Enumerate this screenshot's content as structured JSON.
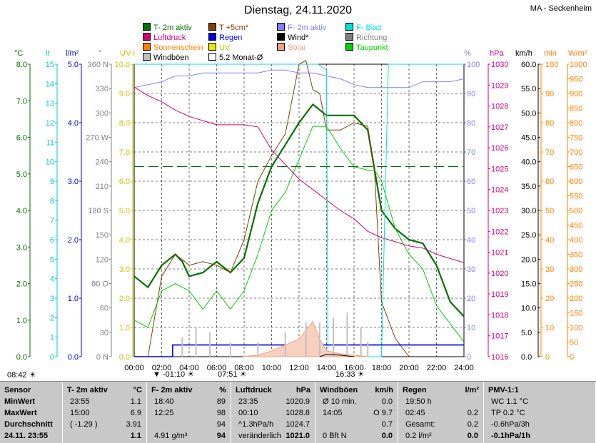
{
  "title": "Dienstag, 24.11.2020",
  "station": "MA - Seckenheim",
  "legend": [
    {
      "label": "T- 2m aktiv",
      "color": "#007000"
    },
    {
      "label": "Luftdruck",
      "color": "#d0007a"
    },
    {
      "label": "Sonnenschein",
      "color": "#ff8000"
    },
    {
      "label": "Windböen",
      "color": "#c0c0c0"
    },
    {
      "label": "T +5cm*",
      "color": "#804000"
    },
    {
      "label": "Regen",
      "color": "#0000e0"
    },
    {
      "label": "UV",
      "color": "#e8e800"
    },
    {
      "label": "5.2 Monat-Ø",
      "color": "#ffffff"
    },
    {
      "label": "F- 2m aktiv",
      "color": "#8080ff"
    },
    {
      "label": "Wind*",
      "color": "#000000"
    },
    {
      "label": "Solar",
      "color": "#f0a080"
    },
    {
      "label": "F- Blatt",
      "color": "#00e0e0"
    },
    {
      "label": "Richtung",
      "color": "#808080"
    },
    {
      "label": "Taupunkt",
      "color": "#00d000"
    }
  ],
  "axis_units": {
    "degC": "°C",
    "lr": "lr",
    "lm2": "l/m²",
    "deg": "°",
    "uvi": "UV-I",
    "pct": "%",
    "hpa": "hPa",
    "kmh": "km/h",
    "min": "min",
    "wm2": "W/m²"
  },
  "axes": {
    "degC": [
      "8.0",
      "7.0",
      "6.0",
      "5.0",
      "4.0",
      "3.0",
      "2.0",
      "1.0",
      "0.0"
    ],
    "lr": [
      "15",
      "14",
      "13",
      "12",
      "11",
      "10",
      "9",
      "8",
      "7",
      "6",
      "5",
      "4",
      "3",
      "2",
      "1",
      "0"
    ],
    "lm2": [
      "5.0",
      "4.0",
      "3.0",
      "2.0",
      "1.0",
      "0.0"
    ],
    "deg": [
      "360 N",
      "330",
      "300",
      "270 W",
      "240",
      "210",
      "180 S",
      "150",
      "120",
      "90 O",
      "60",
      "30",
      "0 N"
    ],
    "uvi": [
      "10.0",
      "9.0",
      "8.0",
      "7.0",
      "6.0",
      "5.0",
      "4.0",
      "3.0",
      "2.0",
      "1.0",
      "0.0"
    ],
    "pct": [
      "100",
      "90",
      "80",
      "70",
      "60",
      "50",
      "40",
      "30",
      "20",
      "10",
      "0"
    ],
    "hpa": [
      "1030",
      "1029",
      "1028",
      "1027",
      "1026",
      "1025",
      "1024",
      "1023",
      "1022",
      "1021",
      "1020",
      "1019",
      "1018",
      "1017",
      "1016"
    ],
    "kmh": [
      "60.0",
      "55.0",
      "50.0",
      "45.0",
      "40.0",
      "35.0",
      "30.0",
      "25.0",
      "20.0",
      "15.0",
      "10.0",
      "5.0",
      "0.0"
    ],
    "min": [
      "100",
      "90",
      "80",
      "70",
      "60",
      "50",
      "40",
      "30",
      "20",
      "10",
      "0"
    ],
    "wm2": [
      "1000",
      "950",
      "900",
      "850",
      "800",
      "750",
      "700",
      "650",
      "600",
      "550",
      "500",
      "450",
      "400",
      "350",
      "300",
      "250",
      "200",
      "150",
      "100",
      "50",
      "0"
    ]
  },
  "chart_data": {
    "type": "line",
    "title": "Dienstag, 24.11.2020",
    "x_ticks": [
      "00:00",
      "02:00",
      "04:00",
      "06:00",
      "08:00",
      "10:00",
      "12:00",
      "14:00",
      "16:00",
      "18:00",
      "20:00",
      "22:00",
      "24:00"
    ],
    "x_range_hours": [
      0,
      24
    ],
    "y_range_degC": [
      0,
      8
    ],
    "grid": true,
    "markers": {
      "sunrise": "07:51",
      "sunset": "16:33",
      "tmin": "-01:10",
      "tmax": "08:42"
    },
    "series": [
      {
        "name": "T- 2m aktiv",
        "unit": "°C",
        "color": "#007000",
        "x": [
          0,
          1,
          2,
          3,
          3.5,
          4,
          5,
          6,
          7,
          8,
          9,
          10,
          11,
          12,
          13,
          14,
          16,
          17,
          18,
          19,
          20,
          21,
          22,
          23,
          24
        ],
        "y": [
          2.2,
          1.9,
          2.5,
          2.8,
          2.6,
          2.2,
          2.3,
          2.6,
          2.3,
          2.7,
          4.2,
          5.2,
          5.8,
          6.4,
          6.9,
          6.6,
          6.6,
          6.2,
          4.0,
          3.5,
          3.2,
          3.1,
          2.5,
          1.5,
          1.1
        ]
      },
      {
        "name": "T +5cm*",
        "unit": "°C",
        "color": "#804000",
        "x": [
          0,
          0.5,
          1,
          2,
          3,
          4,
          5,
          6,
          7,
          8,
          9,
          10,
          11,
          12,
          12.5,
          13,
          13.5,
          14,
          15,
          16,
          17,
          17.5,
          18,
          19,
          20
        ],
        "y": [
          0,
          0,
          0,
          2.2,
          2.8,
          2.5,
          2.6,
          2.5,
          2.3,
          3.2,
          4.8,
          5.5,
          6.1,
          8.0,
          8.1,
          7.3,
          7.2,
          6.2,
          6.2,
          6.4,
          6.3,
          5.0,
          1.5,
          0.5,
          0.0
        ]
      },
      {
        "name": "Taupunkt",
        "unit": "°C",
        "color": "#00d000",
        "x": [
          0,
          1,
          2,
          3,
          4,
          5,
          6,
          7,
          8,
          9,
          10,
          11,
          12,
          13,
          14,
          15,
          16,
          17,
          17.5,
          18,
          19,
          20,
          21,
          22,
          23,
          24
        ],
        "y": [
          1.0,
          0.8,
          1.8,
          2.0,
          1.8,
          1.3,
          1.8,
          1.3,
          1.8,
          2.8,
          4.0,
          4.5,
          5.4,
          6.3,
          6.3,
          5.7,
          5.2,
          5.1,
          5.1,
          4.8,
          3.5,
          2.8,
          2.4,
          1.4,
          0.9,
          0.4
        ]
      },
      {
        "name": "F- 2m aktiv",
        "unit": "%",
        "color": "#8080ff",
        "x": [
          0,
          1,
          2,
          3,
          4,
          5,
          6,
          7,
          8,
          9,
          10,
          11,
          12,
          13,
          14,
          15,
          16,
          17,
          18,
          19,
          20,
          21,
          22,
          23,
          24
        ],
        "y": [
          92,
          93,
          94,
          96,
          96,
          97,
          97,
          97,
          97,
          97,
          98,
          98,
          97,
          97,
          96,
          95,
          93,
          92,
          92,
          92,
          92,
          94,
          94,
          94,
          95
        ]
      },
      {
        "name": "Luftdruck",
        "unit": "hPa",
        "color": "#d0007a",
        "x": [
          0,
          1,
          2,
          3,
          4,
          5,
          6,
          7,
          8,
          9,
          10,
          11,
          12,
          13,
          14,
          15,
          16,
          17,
          18,
          19,
          20,
          21,
          22,
          23,
          24
        ],
        "y": [
          1028.9,
          1028.5,
          1028.2,
          1027.8,
          1027.5,
          1027.3,
          1027.1,
          1027.1,
          1027.1,
          1027.0,
          1025.9,
          1025.2,
          1024.5,
          1024.0,
          1023.5,
          1023.0,
          1022.6,
          1022.0,
          1021.7,
          1021.5,
          1021.3,
          1021.2,
          1020.9,
          1020.7,
          1020.5
        ]
      },
      {
        "name": "F- Blatt",
        "unit": "%",
        "color": "#00e0e0",
        "x": [
          0,
          13,
          13.4,
          14,
          14.1,
          14.5,
          17.9,
          18,
          18.5,
          19,
          24
        ],
        "y": [
          100,
          100,
          100,
          98,
          0,
          0,
          0,
          0,
          100,
          100,
          100
        ]
      },
      {
        "name": "Regen",
        "unit": "l/m²",
        "color": "#0000e0",
        "x": [
          0,
          2.8,
          2.8,
          24
        ],
        "y": [
          0,
          0,
          0.2,
          0.2
        ]
      },
      {
        "name": "5.2 Monat-Ø",
        "unit": "°C",
        "color": "#007000",
        "x": [
          0,
          24
        ],
        "y": [
          5.2,
          5.2
        ]
      },
      {
        "name": "Solar",
        "unit": "W/m²",
        "color": "#f0a080",
        "x": [
          7.9,
          9,
          10,
          11,
          12,
          12.5,
          13,
          13.5,
          14,
          15,
          16,
          17
        ],
        "y": [
          0,
          5,
          20,
          40,
          60,
          90,
          120,
          60,
          20,
          10,
          5,
          0
        ]
      },
      {
        "name": "Windböen",
        "unit": "km/h",
        "color": "#c0c0c0",
        "x": [
          3.5,
          4.5,
          5.5,
          7,
          9,
          11,
          12.5,
          13.5,
          14.5,
          15.5,
          16.5,
          17
        ],
        "y": [
          4,
          6,
          5,
          3,
          3,
          5,
          7,
          7,
          8,
          9,
          6,
          3
        ]
      },
      {
        "name": "Wind*",
        "unit": "km/h",
        "color": "#000000",
        "x": [
          13.5,
          14,
          15,
          16
        ],
        "y": [
          0,
          0.5,
          0.3,
          0
        ]
      }
    ]
  },
  "table": {
    "headers": [
      {
        "name": "Sensor",
        "unit": ""
      },
      {
        "name": "T- 2m aktiv",
        "unit": "°C"
      },
      {
        "name": "F- 2m aktiv",
        "unit": "%"
      },
      {
        "name": "Luftdruck",
        "unit": "hPa"
      },
      {
        "name": "Windböen",
        "unit": "km/h"
      },
      {
        "name": "Regen",
        "unit": "l/m²"
      },
      {
        "name": "PMV-1:1",
        "unit": ""
      }
    ],
    "rows": [
      {
        "label": "MinWert",
        "t_time": "23:55",
        "t_val": "1.1",
        "f_time": "18:40",
        "f_val": "89",
        "p_time": "23:35",
        "p_val": "1020.9",
        "w_time": "Ø 10 min.",
        "w_val": "0.0",
        "r_time": "19:50 h",
        "r_val": "",
        "pmv": "WC 1.1 °C"
      },
      {
        "label": "MaxWert",
        "t_time": "15:00",
        "t_val": "6.9",
        "f_time": "12:25",
        "f_val": "98",
        "p_time": "00:10",
        "p_val": "1028.8",
        "w_time": "14:05",
        "w_val": "O 9.7",
        "r_time": "02:45",
        "r_val": "0.2",
        "pmv": "TP 0.2 °C"
      },
      {
        "label": "Durchschnitt",
        "t_time": "( -1.29 )",
        "t_val": "3.91",
        "f_time": "",
        "f_val": "94",
        "p_time": "^1.3hPa/h",
        "p_val": "1024.7",
        "w_time": "",
        "w_val": "0.7",
        "r_time": "Gesamt:",
        "r_val": "0.2",
        "pmv": "-0.6hPa/3h"
      },
      {
        "label": "24.11. 23:55",
        "t_time": "",
        "t_val": "1.1",
        "f_time": "4.91 g/m³",
        "f_val": "94",
        "p_time": "veränderlich",
        "p_val": "1021.0",
        "w_time": "0 Bft N",
        "w_val": "0.0",
        "r_time": "0.2 l/m²",
        "r_val": "0.0",
        "pmv": "-0.1hPa/1h"
      }
    ]
  }
}
